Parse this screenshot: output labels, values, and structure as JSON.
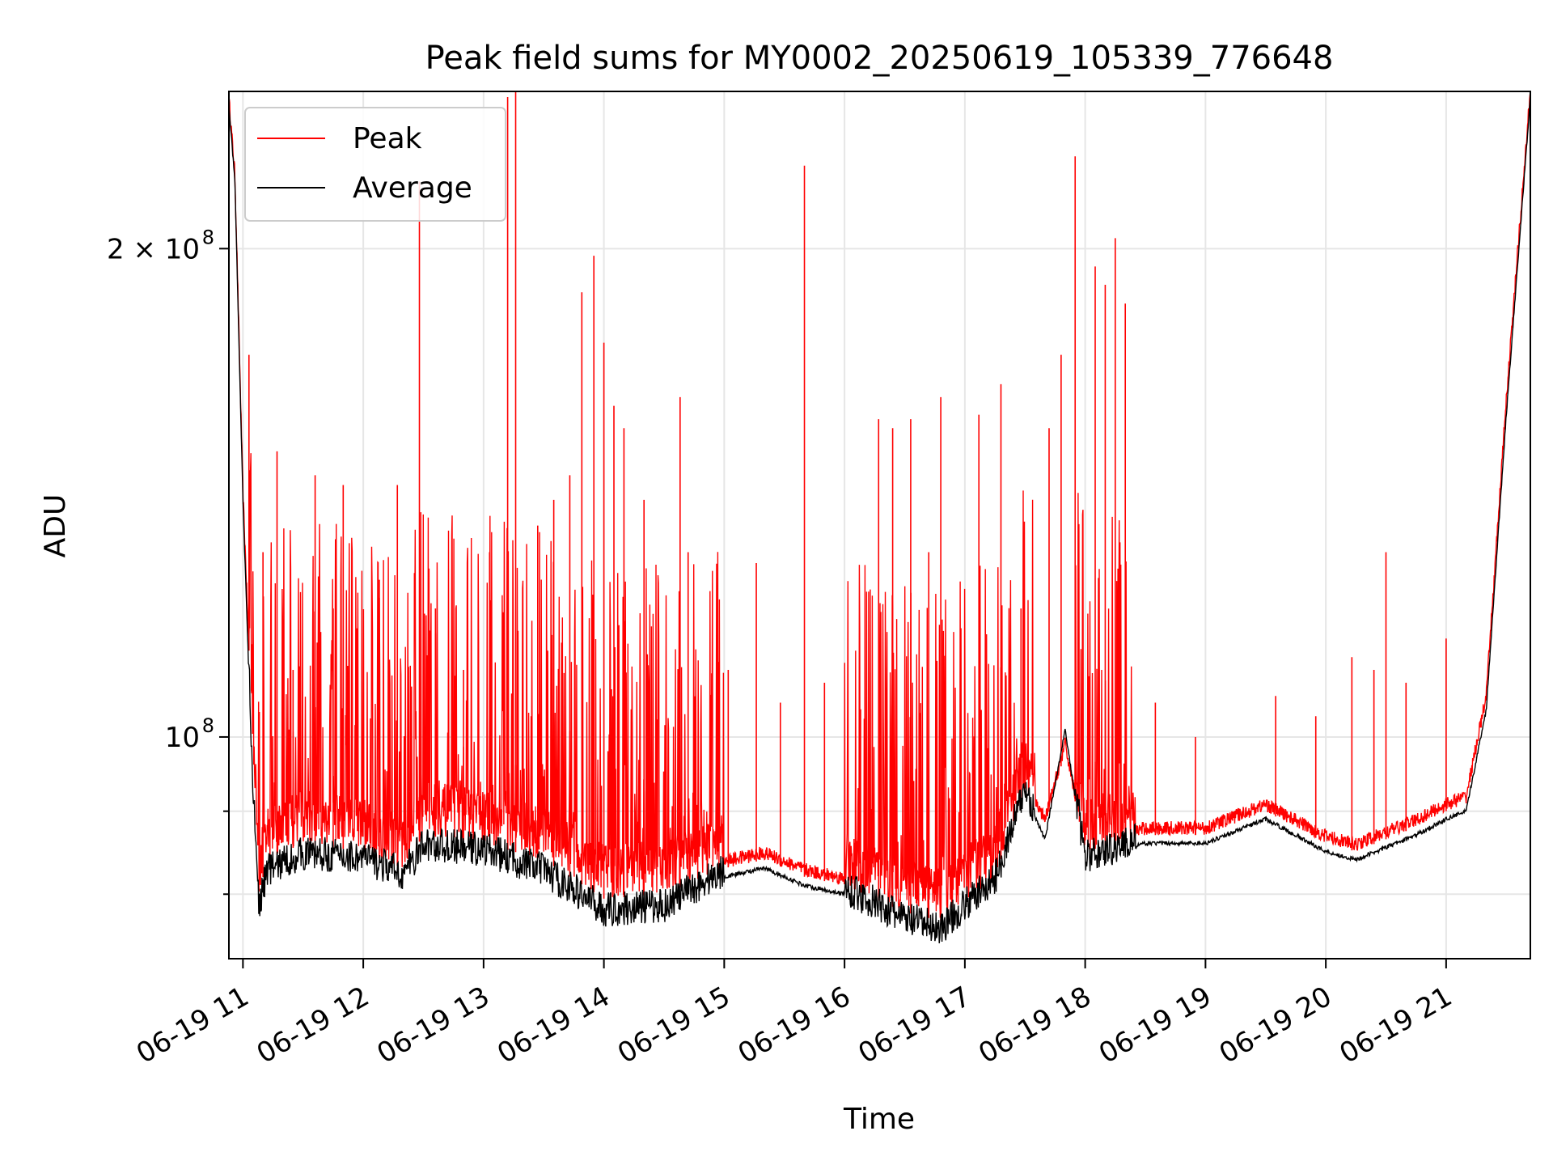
{
  "chart_data": {
    "type": "line",
    "title": "Peak field sums for MY0002_20250619_105339_776648",
    "xlabel": "Time",
    "ylabel": "ADU",
    "yscale": "log",
    "grid": true,
    "legend_position": "top-left",
    "x_range": [
      "2025-06-19 10:53",
      "2025-06-19 21:42"
    ],
    "ylim": [
      73000000,
      250000000
    ],
    "x_ticks": [
      "06-19 11",
      "06-19 12",
      "06-19 13",
      "06-19 14",
      "06-19 15",
      "06-19 16",
      "06-19 17",
      "06-19 18",
      "06-19 19",
      "06-19 20",
      "06-19 21"
    ],
    "y_ticks": [
      {
        "label_base": "2 × 10",
        "label_exp": "8",
        "value": 200000000
      },
      {
        "label_base": "10",
        "label_exp": "8",
        "value": 100000000
      }
    ],
    "y_minor_ticks": [
      90000000,
      80000000
    ],
    "series": [
      {
        "name": "Peak",
        "color": "#ff0000",
        "baseline": [
          [
            "2025-06-19 10:53",
            245000000
          ],
          [
            "2025-06-19 10:56",
            220000000
          ],
          [
            "2025-06-19 11:00",
            140000000
          ],
          [
            "2025-06-19 11:05",
            98000000
          ],
          [
            "2025-06-19 11:08",
            80000000
          ],
          [
            "2025-06-19 11:12",
            84000000
          ],
          [
            "2025-06-19 11:30",
            86000000
          ],
          [
            "2025-06-19 12:00",
            85000000
          ],
          [
            "2025-06-19 12:20",
            83000000
          ],
          [
            "2025-06-19 12:30",
            87000000
          ],
          [
            "2025-06-19 13:00",
            86000000
          ],
          [
            "2025-06-19 13:30",
            84000000
          ],
          [
            "2025-06-19 14:00",
            79500000
          ],
          [
            "2025-06-19 14:30",
            80000000
          ],
          [
            "2025-06-19 15:00",
            83000000
          ],
          [
            "2025-06-19 15:20",
            84000000
          ],
          [
            "2025-06-19 15:40",
            82000000
          ],
          [
            "2025-06-19 16:00",
            81000000
          ],
          [
            "2025-06-19 16:30",
            78000000
          ],
          [
            "2025-06-19 16:48",
            77000000
          ],
          [
            "2025-06-19 17:00",
            79000000
          ],
          [
            "2025-06-19 17:15",
            82000000
          ],
          [
            "2025-06-19 17:30",
            93000000
          ],
          [
            "2025-06-19 17:40",
            88000000
          ],
          [
            "2025-06-19 17:50",
            98000000
          ],
          [
            "2025-06-19 18:00",
            85000000
          ],
          [
            "2025-06-19 18:30",
            87000000
          ],
          [
            "2025-06-19 19:00",
            87000000
          ],
          [
            "2025-06-19 19:30",
            90000000
          ],
          [
            "2025-06-19 20:00",
            86000000
          ],
          [
            "2025-06-19 20:15",
            85000000
          ],
          [
            "2025-06-19 20:45",
            88000000
          ],
          [
            "2025-06-19 21:00",
            90000000
          ],
          [
            "2025-06-19 21:10",
            91000000
          ],
          [
            "2025-06-19 21:20",
            105000000
          ],
          [
            "2025-06-19 21:30",
            160000000
          ],
          [
            "2025-06-19 21:42",
            248000000
          ]
        ],
        "spikes": [
          [
            "2025-06-19 11:03",
            172000000
          ],
          [
            "2025-06-19 11:10",
            130000000
          ],
          [
            "2025-06-19 11:17",
            150000000
          ],
          [
            "2025-06-19 11:25",
            110000000
          ],
          [
            "2025-06-19 11:36",
            145000000
          ],
          [
            "2025-06-19 11:45",
            120000000
          ],
          [
            "2025-06-19 11:50",
            143000000
          ],
          [
            "2025-06-19 12:08",
            125000000
          ],
          [
            "2025-06-19 12:17",
            143000000
          ],
          [
            "2025-06-19 12:28",
            220000000
          ],
          [
            "2025-06-19 12:36",
            120000000
          ],
          [
            "2025-06-19 12:50",
            110000000
          ],
          [
            "2025-06-19 13:03",
            130000000
          ],
          [
            "2025-06-19 13:12",
            248000000
          ],
          [
            "2025-06-19 13:16",
            250000000
          ],
          [
            "2025-06-19 13:27",
            135000000
          ],
          [
            "2025-06-19 13:35",
            140000000
          ],
          [
            "2025-06-19 13:43",
            145000000
          ],
          [
            "2025-06-19 13:49",
            188000000
          ],
          [
            "2025-06-19 13:55",
            198000000
          ],
          [
            "2025-06-19 14:00",
            175000000
          ],
          [
            "2025-06-19 14:05",
            160000000
          ],
          [
            "2025-06-19 14:10",
            155000000
          ],
          [
            "2025-06-19 14:20",
            140000000
          ],
          [
            "2025-06-19 14:38",
            162000000
          ],
          [
            "2025-06-19 14:42",
            130000000
          ],
          [
            "2025-06-19 15:02",
            110000000
          ],
          [
            "2025-06-19 15:16",
            128000000
          ],
          [
            "2025-06-19 15:28",
            105000000
          ],
          [
            "2025-06-19 15:40",
            225000000
          ],
          [
            "2025-06-19 15:50",
            108000000
          ],
          [
            "2025-06-19 16:08",
            104000000
          ],
          [
            "2025-06-19 16:17",
            157000000
          ],
          [
            "2025-06-19 16:24",
            155000000
          ],
          [
            "2025-06-19 16:33",
            157000000
          ],
          [
            "2025-06-19 16:42",
            130000000
          ],
          [
            "2025-06-19 16:48",
            162000000
          ],
          [
            "2025-06-19 17:07",
            158000000
          ],
          [
            "2025-06-19 17:18",
            165000000
          ],
          [
            "2025-06-19 17:28",
            120000000
          ],
          [
            "2025-06-19 17:42",
            155000000
          ],
          [
            "2025-06-19 17:48",
            172000000
          ],
          [
            "2025-06-19 17:55",
            228000000
          ],
          [
            "2025-06-19 18:05",
            195000000
          ],
          [
            "2025-06-19 18:10",
            190000000
          ],
          [
            "2025-06-19 18:15",
            203000000
          ],
          [
            "2025-06-19 18:20",
            185000000
          ],
          [
            "2025-06-19 18:35",
            105000000
          ],
          [
            "2025-06-19 18:55",
            100000000
          ],
          [
            "2025-06-19 19:35",
            106000000
          ],
          [
            "2025-06-19 19:55",
            103000000
          ],
          [
            "2025-06-19 20:13",
            112000000
          ],
          [
            "2025-06-19 20:24",
            110000000
          ],
          [
            "2025-06-19 20:30",
            130000000
          ],
          [
            "2025-06-19 20:40",
            108000000
          ],
          [
            "2025-06-19 21:00",
            115000000
          ]
        ]
      },
      {
        "name": "Average",
        "color": "#000000",
        "baseline": [
          [
            "2025-06-19 10:53",
            245000000
          ],
          [
            "2025-06-19 10:56",
            220000000
          ],
          [
            "2025-06-19 11:00",
            140000000
          ],
          [
            "2025-06-19 11:05",
            92000000
          ],
          [
            "2025-06-19 11:08",
            78000000
          ],
          [
            "2025-06-19 11:12",
            82000000
          ],
          [
            "2025-06-19 11:30",
            84000000
          ],
          [
            "2025-06-19 12:00",
            83500000
          ],
          [
            "2025-06-19 12:20",
            81500000
          ],
          [
            "2025-06-19 12:30",
            85000000
          ],
          [
            "2025-06-19 13:00",
            84500000
          ],
          [
            "2025-06-19 13:30",
            82000000
          ],
          [
            "2025-06-19 14:00",
            77500000
          ],
          [
            "2025-06-19 14:30",
            78000000
          ],
          [
            "2025-06-19 15:00",
            82000000
          ],
          [
            "2025-06-19 15:20",
            83000000
          ],
          [
            "2025-06-19 15:40",
            81000000
          ],
          [
            "2025-06-19 16:00",
            80000000
          ],
          [
            "2025-06-19 16:30",
            76500000
          ],
          [
            "2025-06-19 16:48",
            75500000
          ],
          [
            "2025-06-19 17:00",
            78000000
          ],
          [
            "2025-06-19 17:15",
            81000000
          ],
          [
            "2025-06-19 17:30",
            92000000
          ],
          [
            "2025-06-19 17:40",
            86500000
          ],
          [
            "2025-06-19 17:50",
            101000000
          ],
          [
            "2025-06-19 18:00",
            83500000
          ],
          [
            "2025-06-19 18:30",
            86000000
          ],
          [
            "2025-06-19 19:00",
            86000000
          ],
          [
            "2025-06-19 19:30",
            89000000
          ],
          [
            "2025-06-19 20:00",
            85000000
          ],
          [
            "2025-06-19 20:15",
            84000000
          ],
          [
            "2025-06-19 20:45",
            87000000
          ],
          [
            "2025-06-19 21:00",
            89000000
          ],
          [
            "2025-06-19 21:10",
            90000000
          ],
          [
            "2025-06-19 21:20",
            104000000
          ],
          [
            "2025-06-19 21:30",
            158000000
          ],
          [
            "2025-06-19 21:42",
            248000000
          ]
        ]
      }
    ]
  }
}
